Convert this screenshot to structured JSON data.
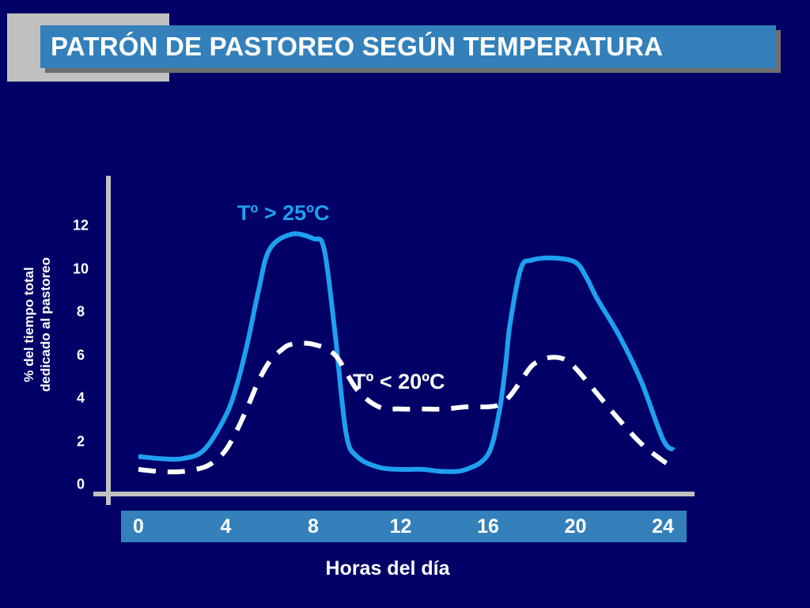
{
  "slide": {
    "title": "PATRÓN DE PASTOREO SEGÚN TEMPERATURA",
    "colors": {
      "background": "#000066",
      "title_bar": "#3380bb",
      "hot_series": "#1ea0f0",
      "cool_series": "#ffffff",
      "axis": "#c0c0c0"
    }
  },
  "chart_data": {
    "type": "line",
    "title": "",
    "xlabel": "Horas del día",
    "ylabel_lines": [
      "% del tiempo total",
      "dedicado al pastoreo"
    ],
    "xlim": [
      0,
      24
    ],
    "ylim": [
      0,
      12
    ],
    "x_ticks": [
      "0",
      "4",
      "8",
      "12",
      "16",
      "20",
      "24"
    ],
    "y_ticks": [
      "0",
      "2",
      "4",
      "6",
      "8",
      "10",
      "12"
    ],
    "grid": false,
    "series": [
      {
        "name": "Tº > 25ºC",
        "style": "solid",
        "color": "#1ea0f0",
        "x": [
          0,
          1,
          2,
          3,
          4,
          4.5,
          5,
          5.5,
          6,
          7,
          8,
          8.5,
          9,
          9.5,
          10,
          11,
          12,
          13,
          14,
          15,
          16,
          16.5,
          16.8,
          17,
          17.5,
          18,
          19,
          20,
          20.5,
          21,
          22,
          23,
          24,
          24.5
        ],
        "y": [
          1.3,
          1.2,
          1.2,
          1.6,
          3.2,
          4.6,
          6.6,
          9.0,
          10.9,
          11.6,
          11.4,
          10.9,
          7.0,
          2.4,
          1.3,
          0.8,
          0.7,
          0.7,
          0.6,
          0.7,
          1.4,
          3.3,
          5.5,
          7.4,
          10.0,
          10.4,
          10.5,
          10.3,
          9.6,
          8.6,
          6.9,
          4.8,
          2.1,
          1.6
        ]
      },
      {
        "name": "Tº < 20ºC",
        "style": "dashed",
        "color": "#ffffff",
        "x": [
          0,
          1,
          2,
          3,
          3.5,
          4,
          4.5,
          5,
          5.5,
          6,
          6.5,
          7,
          8,
          9,
          10,
          11,
          12,
          13,
          14,
          15,
          16,
          16.5,
          17,
          17.5,
          18,
          18.5,
          19,
          19.5,
          20,
          21,
          22,
          23,
          24,
          24.5
        ],
        "y": [
          0.7,
          0.6,
          0.6,
          0.8,
          1.1,
          1.6,
          2.5,
          3.6,
          4.8,
          5.7,
          6.2,
          6.5,
          6.5,
          6.0,
          4.4,
          3.6,
          3.5,
          3.5,
          3.5,
          3.6,
          3.6,
          3.7,
          4.1,
          4.8,
          5.5,
          5.8,
          5.9,
          5.8,
          5.4,
          4.2,
          3.0,
          1.9,
          1.1,
          0.8
        ]
      }
    ]
  }
}
